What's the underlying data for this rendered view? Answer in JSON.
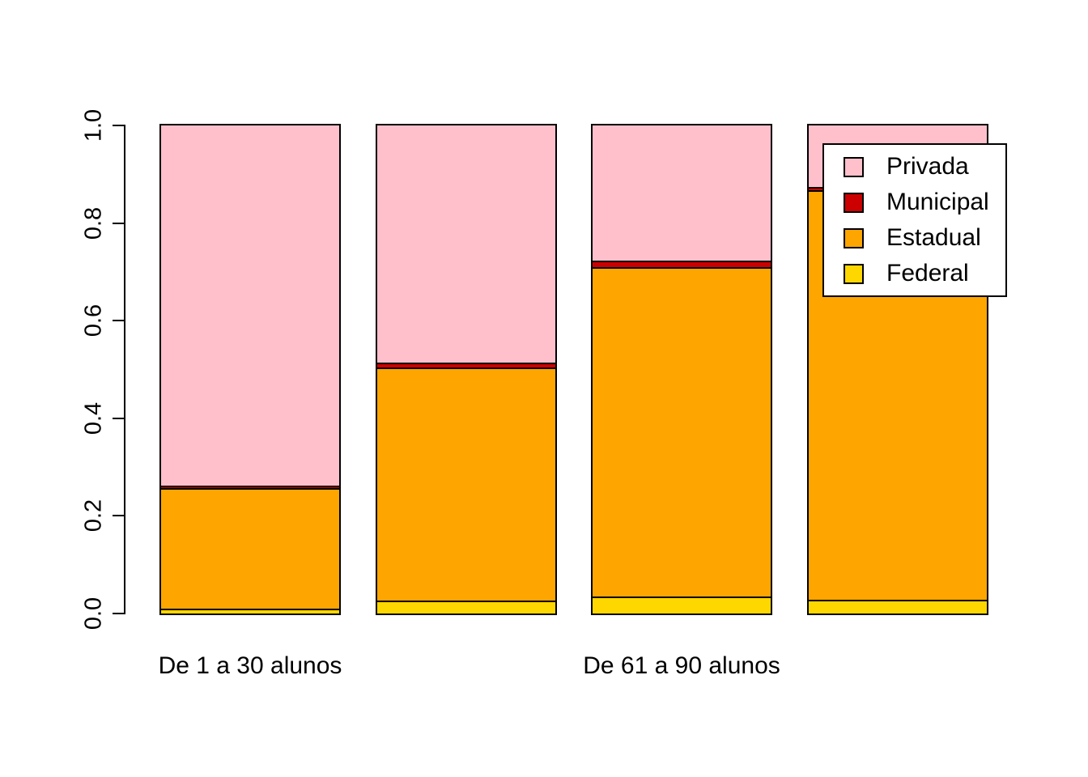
{
  "chart_data": {
    "type": "bar",
    "stacked": true,
    "proportional": true,
    "categories": [
      "De 1 a 30 alunos",
      "",
      "De 61 a 90 alunos",
      ""
    ],
    "series": [
      {
        "name": "Federal",
        "color": "#FFD700",
        "values": [
          0.008,
          0.025,
          0.033,
          0.027
        ]
      },
      {
        "name": "Estadual",
        "color": "#FFA500",
        "values": [
          0.247,
          0.477,
          0.675,
          0.838
        ]
      },
      {
        "name": "Municipal",
        "color": "#CC0000",
        "values": [
          0.005,
          0.01,
          0.013,
          0.007
        ]
      },
      {
        "name": "Privada",
        "color": "#FFC0CB",
        "values": [
          0.74,
          0.488,
          0.279,
          0.128
        ]
      }
    ],
    "ylim": [
      0,
      1
    ],
    "yticks": [
      0.0,
      0.2,
      0.4,
      0.6,
      0.8,
      1.0
    ],
    "ytick_labels": [
      "0.0",
      "0.2",
      "0.4",
      "0.6",
      "0.8",
      "1.0"
    ],
    "grid": false,
    "bar_border_color": "#000000",
    "background_color": "#FFFFFF",
    "legend": {
      "position": "topright",
      "entries": [
        {
          "label": "Privada",
          "color": "#FFC0CB"
        },
        {
          "label": "Municipal",
          "color": "#CC0000"
        },
        {
          "label": "Estadual",
          "color": "#FFA500"
        },
        {
          "label": "Federal",
          "color": "#FFD700"
        }
      ]
    }
  }
}
